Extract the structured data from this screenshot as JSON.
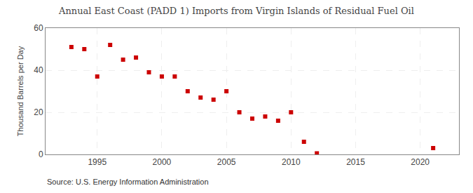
{
  "chart_data": {
    "type": "scatter",
    "title": "Annual East Coast (PADD 1) Imports from Virgin Islands of Residual Fuel Oil",
    "ylabel": "Thousand Barrels per Day",
    "annotations": [
      "Source: U.S. Energy Information Administration"
    ],
    "x": [
      1993,
      1994,
      1995,
      1996,
      1997,
      1998,
      1999,
      2000,
      2001,
      2002,
      2003,
      2004,
      2005,
      2006,
      2007,
      2008,
      2009,
      2010,
      2011,
      2012,
      2021
    ],
    "values": [
      51,
      50,
      37,
      52,
      45,
      46,
      39,
      37,
      37,
      30,
      27,
      26,
      30,
      20,
      17,
      18,
      16,
      20,
      6,
      0.5,
      3
    ],
    "color": "#cc0000",
    "marker": "square",
    "xlim": [
      1991,
      2023
    ],
    "ylim": [
      0,
      60
    ],
    "xticks": [
      1995,
      2000,
      2005,
      2010,
      2015,
      2020
    ],
    "yticks": [
      0,
      20,
      40,
      60
    ],
    "grid": true
  }
}
